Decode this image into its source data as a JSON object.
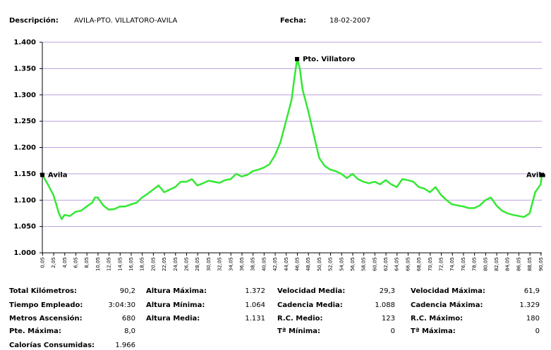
{
  "header": {
    "label": "Descripción:",
    "description": "AVILA-PTO. VILLATORO-AVILA",
    "date_label": "Fecha:",
    "date": "18-02-2007"
  },
  "chart_data": {
    "type": "line",
    "color": "#33e833",
    "grid": true,
    "ylim": [
      1000,
      1400
    ],
    "yticks": [
      {
        "value": 1000,
        "label": "1.000"
      },
      {
        "value": 1050,
        "label": "1.050"
      },
      {
        "value": 1100,
        "label": "1.100"
      },
      {
        "value": 1150,
        "label": "1.150"
      },
      {
        "value": 1200,
        "label": "1.200"
      },
      {
        "value": 1250,
        "label": "1.250"
      },
      {
        "value": 1300,
        "label": "1.300"
      },
      {
        "value": 1350,
        "label": "1.350"
      },
      {
        "value": 1400,
        "label": "1.400"
      }
    ],
    "xlim": [
      0,
      90.2
    ],
    "xticks": [
      {
        "value": 0.05,
        "label": "0,05"
      },
      {
        "value": 2.05,
        "label": "2,05"
      },
      {
        "value": 4.05,
        "label": "4,05"
      },
      {
        "value": 6.05,
        "label": "6,05"
      },
      {
        "value": 8.05,
        "label": "8,05"
      },
      {
        "value": 10.05,
        "label": "10,05"
      },
      {
        "value": 12.05,
        "label": "12,05"
      },
      {
        "value": 14.05,
        "label": "14,05"
      },
      {
        "value": 16.05,
        "label": "16,05"
      },
      {
        "value": 18.05,
        "label": "18,05"
      },
      {
        "value": 20.05,
        "label": "20,05"
      },
      {
        "value": 22.05,
        "label": "22,05"
      },
      {
        "value": 24.05,
        "label": "24,05"
      },
      {
        "value": 26.05,
        "label": "26,05"
      },
      {
        "value": 28.05,
        "label": "28,05"
      },
      {
        "value": 30.05,
        "label": "30,05"
      },
      {
        "value": 32.05,
        "label": "32,05"
      },
      {
        "value": 34.05,
        "label": "34,05"
      },
      {
        "value": 36.05,
        "label": "36,05"
      },
      {
        "value": 38.05,
        "label": "38,05"
      },
      {
        "value": 40.05,
        "label": "40,05"
      },
      {
        "value": 42.05,
        "label": "42,05"
      },
      {
        "value": 44.05,
        "label": "44,05"
      },
      {
        "value": 46.05,
        "label": "46,05"
      },
      {
        "value": 48.05,
        "label": "48,05"
      },
      {
        "value": 50.05,
        "label": "50,05"
      },
      {
        "value": 52.05,
        "label": "52,05"
      },
      {
        "value": 54.05,
        "label": "54,05"
      },
      {
        "value": 56.05,
        "label": "56,05"
      },
      {
        "value": 58.05,
        "label": "58,05"
      },
      {
        "value": 60.05,
        "label": "60,05"
      },
      {
        "value": 62.05,
        "label": "62,05"
      },
      {
        "value": 64.05,
        "label": "64,05"
      },
      {
        "value": 66.05,
        "label": "66,05"
      },
      {
        "value": 68.05,
        "label": "68,05"
      },
      {
        "value": 70.05,
        "label": "70,05"
      },
      {
        "value": 72.05,
        "label": "72,05"
      },
      {
        "value": 74.05,
        "label": "74,05"
      },
      {
        "value": 76.05,
        "label": "76,05"
      },
      {
        "value": 78.05,
        "label": "78,05"
      },
      {
        "value": 80.05,
        "label": "80,05"
      },
      {
        "value": 82.05,
        "label": "82,05"
      },
      {
        "value": 84.05,
        "label": "84,05"
      },
      {
        "value": 86.05,
        "label": "86,05"
      },
      {
        "value": 88.05,
        "label": "88,05"
      },
      {
        "value": 90.05,
        "label": "90,05"
      }
    ],
    "x": [
      0,
      1,
      2,
      3,
      3.5,
      4,
      5,
      6,
      7,
      8,
      9,
      9.5,
      10,
      11,
      12,
      13,
      14,
      15,
      16,
      17,
      18,
      19,
      20,
      21,
      22,
      23,
      24,
      25,
      26,
      27,
      28,
      29,
      30,
      31,
      32,
      33,
      34,
      35,
      36,
      37,
      38,
      39,
      40,
      41,
      42,
      43,
      44,
      45,
      45.5,
      46,
      46.5,
      47,
      48,
      49,
      50,
      51,
      52,
      53,
      54,
      55,
      56,
      57,
      58,
      59,
      60,
      61,
      62,
      63,
      64,
      65,
      66,
      67,
      68,
      69,
      70,
      71,
      72,
      73,
      74,
      75,
      76,
      77,
      78,
      79,
      80,
      81,
      82,
      83,
      84,
      85,
      86,
      87,
      88,
      89,
      90,
      90.2
    ],
    "values": [
      1148,
      1130,
      1110,
      1075,
      1064,
      1072,
      1070,
      1078,
      1080,
      1088,
      1095,
      1105,
      1105,
      1090,
      1082,
      1083,
      1088,
      1088,
      1092,
      1095,
      1105,
      1112,
      1120,
      1128,
      1115,
      1120,
      1125,
      1135,
      1135,
      1140,
      1128,
      1132,
      1137,
      1135,
      1133,
      1138,
      1140,
      1150,
      1145,
      1148,
      1155,
      1158,
      1162,
      1168,
      1185,
      1210,
      1250,
      1290,
      1330,
      1368,
      1350,
      1310,
      1270,
      1225,
      1180,
      1165,
      1158,
      1155,
      1150,
      1142,
      1150,
      1140,
      1135,
      1132,
      1135,
      1130,
      1138,
      1130,
      1125,
      1140,
      1138,
      1135,
      1125,
      1122,
      1115,
      1125,
      1110,
      1100,
      1092,
      1090,
      1088,
      1085,
      1085,
      1090,
      1100,
      1105,
      1090,
      1080,
      1075,
      1072,
      1070,
      1068,
      1075,
      1115,
      1130,
      1148
    ],
    "annotations": [
      {
        "text": "Avila",
        "x": 0,
        "y": 1148
      },
      {
        "text": "Pto. Villatoro",
        "x": 46,
        "y": 1368
      },
      {
        "text": "Avila",
        "x": 90.2,
        "y": 1148
      }
    ]
  },
  "summary": [
    [
      {
        "label": "Total Kilómetros:",
        "value": "90,2"
      },
      {
        "label": "Tiempo Empleado:",
        "value": "3:04:30"
      },
      {
        "label": "Metros Ascensión:",
        "value": "680"
      },
      {
        "label": "Pte. Máxima:",
        "value": "8,0"
      },
      {
        "label": "Calorías Consumidas:",
        "value": "1.966"
      }
    ],
    [
      {
        "label": "Altura Máxima:",
        "value": "1.372"
      },
      {
        "label": "Altura Mínima:",
        "value": "1.064"
      },
      {
        "label": "Altura Media:",
        "value": "1.131"
      }
    ],
    [
      {
        "label": "Velocidad Media:",
        "value": "29,3"
      },
      {
        "label": "Cadencia Media:",
        "value": "1.088"
      },
      {
        "label": "R.C. Medio:",
        "value": "123"
      },
      {
        "label": "Tª Mínima:",
        "value": "0"
      }
    ],
    [
      {
        "label": "Velocidad Máxima:",
        "value": "61,9"
      },
      {
        "label": "Cadencia Máxima:",
        "value": "1.329"
      },
      {
        "label": "R.C.  Máximo:",
        "value": "180"
      },
      {
        "label": "Tª Máxima:",
        "value": "0"
      }
    ]
  ]
}
